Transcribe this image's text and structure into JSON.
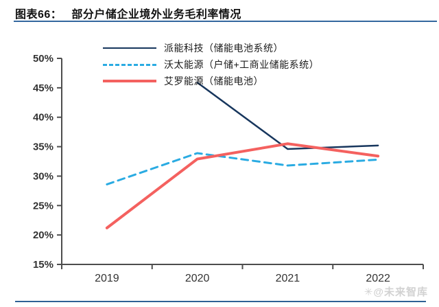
{
  "header": {
    "label": "图表66：",
    "title": "部分户储企业境外业务毛利率情况"
  },
  "watermark": {
    "logo": "✳",
    "text": "@未来智库"
  },
  "chart_data": {
    "type": "line",
    "title": "部分户储企业境外业务毛利率情况",
    "categories": [
      "2019",
      "2020",
      "2021",
      "2022"
    ],
    "series": [
      {
        "name": "派能科技（储能电池系统）",
        "values": [
          null,
          45.9,
          34.6,
          35.2
        ],
        "color": "#17365d",
        "style": "solid",
        "width": 2.5
      },
      {
        "name": "沃太能源（户储+工商业储能系统）",
        "values": [
          28.6,
          33.9,
          31.8,
          32.8
        ],
        "color": "#2aabe2",
        "style": "dashed",
        "width": 3
      },
      {
        "name": "艾罗能源（储能电池）",
        "values": [
          21.2,
          32.9,
          35.5,
          33.4
        ],
        "color": "#f4615f",
        "style": "solid",
        "width": 4
      }
    ],
    "ylim": [
      15,
      50
    ],
    "ytick_step": 5,
    "ytick_labels": [
      "15%",
      "20%",
      "25%",
      "30%",
      "35%",
      "40%",
      "45%",
      "50%"
    ],
    "xlabel": "",
    "ylabel": "",
    "grid": false,
    "legend_position": "top-left-inside",
    "axis_color": "#4d4d4d",
    "label_color": "#333333"
  }
}
